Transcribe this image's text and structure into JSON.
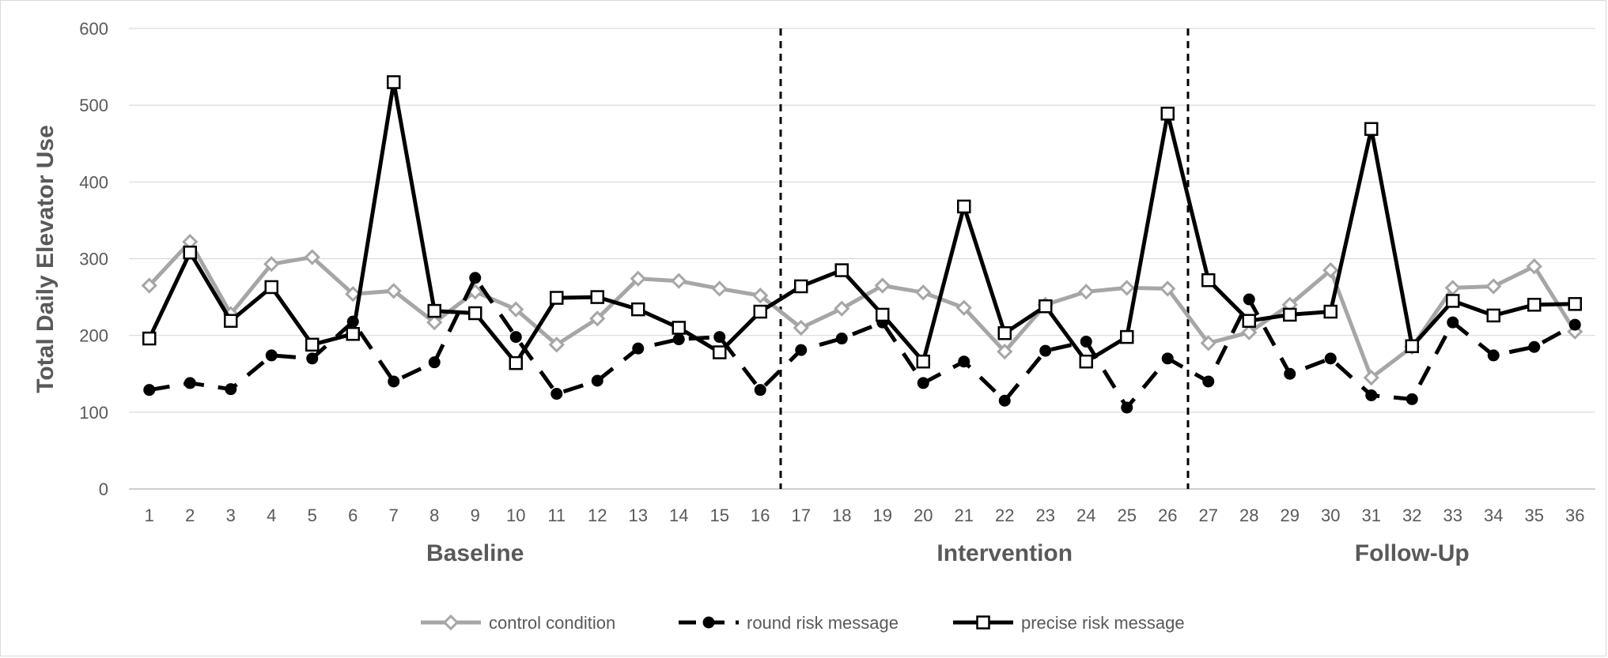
{
  "chart_data": {
    "type": "line",
    "title": "",
    "ylabel": "Total Daily Elevator Use",
    "xlabel": "",
    "ylim": [
      0,
      600
    ],
    "y_ticks": [
      0,
      100,
      200,
      300,
      400,
      500,
      600
    ],
    "grid": true,
    "categories": [
      "1",
      "2",
      "3",
      "4",
      "5",
      "6",
      "7",
      "8",
      "9",
      "10",
      "11",
      "12",
      "13",
      "14",
      "15",
      "16",
      "17",
      "18",
      "19",
      "20",
      "21",
      "22",
      "23",
      "24",
      "25",
      "26",
      "27",
      "28",
      "29",
      "30",
      "31",
      "32",
      "33",
      "34",
      "35",
      "36"
    ],
    "phase_dividers_after": [
      16,
      26
    ],
    "phases": [
      {
        "label": "Baseline",
        "center_day": 8.5
      },
      {
        "label": "Intervention",
        "center_day": 21.5
      },
      {
        "label": "Follow-Up",
        "center_day": 31.5
      }
    ],
    "series": [
      {
        "name": "control condition",
        "color": "#a6a6a6",
        "marker": "diamond",
        "dash": "solid",
        "values": [
          265,
          322,
          228,
          293,
          302,
          254,
          258,
          217,
          257,
          234,
          188,
          222,
          274,
          271,
          261,
          252,
          210,
          235,
          265,
          256,
          236,
          179,
          240,
          257,
          262,
          261,
          190,
          204,
          240,
          285,
          145,
          185,
          262,
          264,
          290,
          205
        ]
      },
      {
        "name": "round risk message",
        "color": "#000000",
        "marker": "circle",
        "dash": "dashed",
        "values": [
          129,
          138,
          130,
          174,
          170,
          218,
          140,
          165,
          275,
          198,
          124,
          141,
          183,
          195,
          198,
          129,
          181,
          196,
          217,
          138,
          166,
          115,
          180,
          192,
          106,
          170,
          140,
          247,
          150,
          170,
          122,
          117,
          217,
          174,
          185,
          214
        ]
      },
      {
        "name": "precise risk message",
        "color": "#000000",
        "marker": "square",
        "dash": "solid",
        "values": [
          196,
          308,
          219,
          263,
          188,
          202,
          530,
          232,
          229,
          164,
          249,
          250,
          234,
          210,
          178,
          231,
          264,
          285,
          227,
          166,
          368,
          203,
          238,
          166,
          198,
          489,
          272,
          219,
          227,
          231,
          469,
          186,
          245,
          226,
          240,
          241
        ]
      }
    ]
  }
}
